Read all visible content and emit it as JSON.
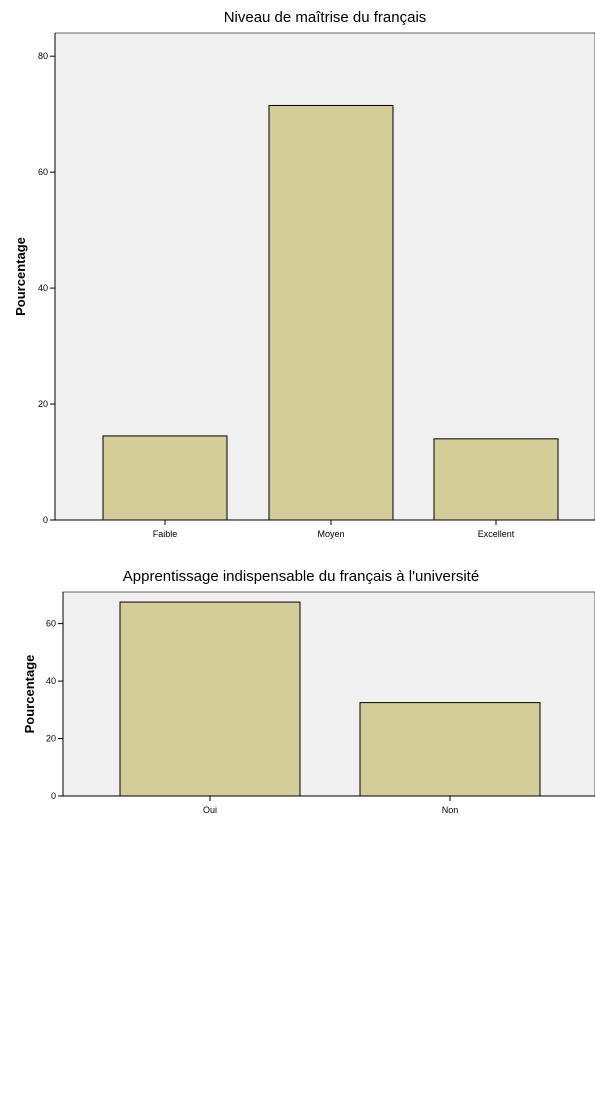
{
  "chart_data": [
    {
      "type": "bar",
      "title": "Niveau de maîtrise du français",
      "xlabel": "",
      "ylabel": "Pourcentage",
      "categories": [
        "Faible",
        "Moyen",
        "Excellent"
      ],
      "values": [
        14.5,
        71.5,
        14.0
      ],
      "ylim": [
        0,
        84
      ],
      "yticks": [
        0,
        20,
        40,
        60,
        80
      ],
      "grid": false,
      "bar_color": "#d3cd98",
      "plot_background": "#f0f0f0"
    },
    {
      "type": "bar",
      "title": "Apprentissage indispensable du français à l'université",
      "xlabel": "",
      "ylabel": "Pourcentage",
      "categories": [
        "Oui",
        "Non"
      ],
      "values": [
        67.5,
        32.5
      ],
      "ylim": [
        0,
        71
      ],
      "yticks": [
        0,
        20,
        40,
        60
      ],
      "grid": false,
      "bar_color": "#d3cd98",
      "plot_background": "#f0f0f0"
    }
  ]
}
